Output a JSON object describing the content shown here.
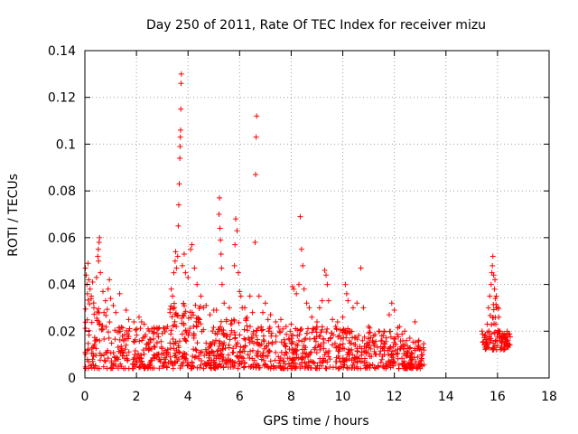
{
  "chart_data": {
    "type": "scatter",
    "title": "Day 250 of 2011, Rate Of TEC Index for receiver mizu",
    "xlabel": "GPS time / hours",
    "ylabel": "ROTI / TECUs",
    "xlim": [
      0,
      18
    ],
    "ylim": [
      0,
      0.14
    ],
    "x_ticks": [
      "0",
      "2",
      "4",
      "6",
      "8",
      "10",
      "12",
      "14",
      "16",
      "18"
    ],
    "y_ticks": [
      "0",
      "0.02",
      "0.04",
      "0.06",
      "0.08",
      "0.1",
      "0.12",
      "0.14"
    ],
    "grid": true,
    "marker": "+",
    "color": "#ff0000",
    "series": [
      {
        "name": "ROTI",
        "points": [
          [
            0.02,
            0.047
          ],
          [
            0.05,
            0.044
          ],
          [
            0.08,
            0.04
          ],
          [
            0.1,
            0.036
          ],
          [
            0.12,
            0.049
          ],
          [
            0.15,
            0.042
          ],
          [
            0.2,
            0.038
          ],
          [
            0.25,
            0.035
          ],
          [
            0.3,
            0.041
          ],
          [
            0.35,
            0.03
          ],
          [
            0.45,
            0.043
          ],
          [
            0.5,
            0.052
          ],
          [
            0.52,
            0.055
          ],
          [
            0.55,
            0.058
          ],
          [
            0.57,
            0.06
          ],
          [
            0.53,
            0.05
          ],
          [
            0.6,
            0.045
          ],
          [
            0.7,
            0.037
          ],
          [
            0.8,
            0.033
          ],
          [
            0.9,
            0.038
          ],
          [
            0.95,
            0.042
          ],
          [
            1.0,
            0.034
          ],
          [
            1.1,
            0.031
          ],
          [
            1.2,
            0.028
          ],
          [
            1.35,
            0.036
          ],
          [
            1.6,
            0.029
          ],
          [
            1.7,
            0.025
          ],
          [
            1.9,
            0.024
          ],
          [
            2.1,
            0.026
          ],
          [
            2.2,
            0.024
          ],
          [
            2.3,
            0.023
          ],
          [
            2.45,
            0.021
          ],
          [
            2.6,
            0.02
          ],
          [
            2.8,
            0.019
          ],
          [
            3.0,
            0.019
          ],
          [
            3.2,
            0.022
          ],
          [
            3.3,
            0.028
          ],
          [
            3.35,
            0.038
          ],
          [
            3.4,
            0.035
          ],
          [
            3.45,
            0.045
          ],
          [
            3.5,
            0.05
          ],
          [
            3.52,
            0.054
          ],
          [
            3.55,
            0.047
          ],
          [
            3.6,
            0.052
          ],
          [
            3.62,
            0.065
          ],
          [
            3.64,
            0.074
          ],
          [
            3.66,
            0.083
          ],
          [
            3.68,
            0.094
          ],
          [
            3.69,
            0.099
          ],
          [
            3.7,
            0.103
          ],
          [
            3.71,
            0.106
          ],
          [
            3.72,
            0.115
          ],
          [
            3.73,
            0.126
          ],
          [
            3.74,
            0.13
          ],
          [
            3.78,
            0.048
          ],
          [
            3.85,
            0.053
          ],
          [
            3.9,
            0.045
          ],
          [
            4.0,
            0.043
          ],
          [
            4.1,
            0.055
          ],
          [
            4.15,
            0.057
          ],
          [
            4.25,
            0.047
          ],
          [
            4.35,
            0.04
          ],
          [
            4.5,
            0.035
          ],
          [
            4.6,
            0.03
          ],
          [
            4.7,
            0.031
          ],
          [
            4.85,
            0.027
          ],
          [
            5.0,
            0.029
          ],
          [
            5.1,
            0.029
          ],
          [
            5.2,
            0.07
          ],
          [
            5.22,
            0.077
          ],
          [
            5.24,
            0.064
          ],
          [
            5.26,
            0.059
          ],
          [
            5.28,
            0.053
          ],
          [
            5.3,
            0.047
          ],
          [
            5.32,
            0.04
          ],
          [
            5.4,
            0.032
          ],
          [
            5.6,
            0.03
          ],
          [
            5.8,
            0.048
          ],
          [
            5.82,
            0.057
          ],
          [
            5.85,
            0.068
          ],
          [
            5.9,
            0.063
          ],
          [
            5.95,
            0.045
          ],
          [
            6.0,
            0.037
          ],
          [
            6.05,
            0.035
          ],
          [
            6.1,
            0.03
          ],
          [
            6.2,
            0.03
          ],
          [
            6.4,
            0.035
          ],
          [
            6.5,
            0.028
          ],
          [
            6.6,
            0.058
          ],
          [
            6.62,
            0.087
          ],
          [
            6.64,
            0.103
          ],
          [
            6.66,
            0.112
          ],
          [
            6.75,
            0.035
          ],
          [
            6.9,
            0.028
          ],
          [
            7.0,
            0.032
          ],
          [
            7.1,
            0.025
          ],
          [
            7.2,
            0.027
          ],
          [
            7.4,
            0.024
          ],
          [
            7.6,
            0.025
          ],
          [
            7.8,
            0.022
          ],
          [
            8.0,
            0.023
          ],
          [
            8.05,
            0.039
          ],
          [
            8.1,
            0.038
          ],
          [
            8.2,
            0.036
          ],
          [
            8.3,
            0.04
          ],
          [
            8.35,
            0.069
          ],
          [
            8.4,
            0.055
          ],
          [
            8.45,
            0.048
          ],
          [
            8.5,
            0.038
          ],
          [
            8.6,
            0.032
          ],
          [
            8.7,
            0.03
          ],
          [
            8.8,
            0.026
          ],
          [
            9.0,
            0.024
          ],
          [
            9.1,
            0.03
          ],
          [
            9.2,
            0.033
          ],
          [
            9.3,
            0.046
          ],
          [
            9.35,
            0.044
          ],
          [
            9.4,
            0.04
          ],
          [
            9.45,
            0.033
          ],
          [
            9.6,
            0.025
          ],
          [
            9.8,
            0.024
          ],
          [
            10.0,
            0.026
          ],
          [
            10.1,
            0.04
          ],
          [
            10.15,
            0.036
          ],
          [
            10.2,
            0.033
          ],
          [
            10.4,
            0.03
          ],
          [
            10.55,
            0.032
          ],
          [
            10.7,
            0.047
          ],
          [
            10.8,
            0.03
          ],
          [
            11.0,
            0.022
          ],
          [
            11.2,
            0.018
          ],
          [
            11.4,
            0.02
          ],
          [
            11.6,
            0.02
          ],
          [
            11.8,
            0.027
          ],
          [
            11.9,
            0.032
          ],
          [
            12.0,
            0.029
          ],
          [
            12.2,
            0.022
          ],
          [
            12.4,
            0.02
          ],
          [
            12.6,
            0.017
          ],
          [
            12.8,
            0.024
          ],
          [
            12.95,
            0.016
          ],
          [
            13.05,
            0.012
          ],
          [
            13.1,
            0.01
          ],
          [
            15.4,
            0.02
          ],
          [
            15.5,
            0.018
          ],
          [
            15.6,
            0.023
          ],
          [
            15.65,
            0.03
          ],
          [
            15.7,
            0.035
          ],
          [
            15.75,
            0.04
          ],
          [
            15.78,
            0.045
          ],
          [
            15.8,
            0.048
          ],
          [
            15.82,
            0.052
          ],
          [
            15.85,
            0.044
          ],
          [
            15.88,
            0.038
          ],
          [
            15.9,
            0.042
          ],
          [
            15.92,
            0.034
          ],
          [
            15.95,
            0.035
          ],
          [
            16.0,
            0.03
          ],
          [
            16.05,
            0.026
          ],
          [
            16.1,
            0.02
          ],
          [
            16.15,
            0.018
          ],
          [
            16.2,
            0.017
          ],
          [
            16.25,
            0.019
          ],
          [
            16.3,
            0.017
          ],
          [
            16.35,
            0.015
          ],
          [
            16.4,
            0.016
          ],
          [
            16.45,
            0.014
          ]
        ]
      }
    ]
  }
}
